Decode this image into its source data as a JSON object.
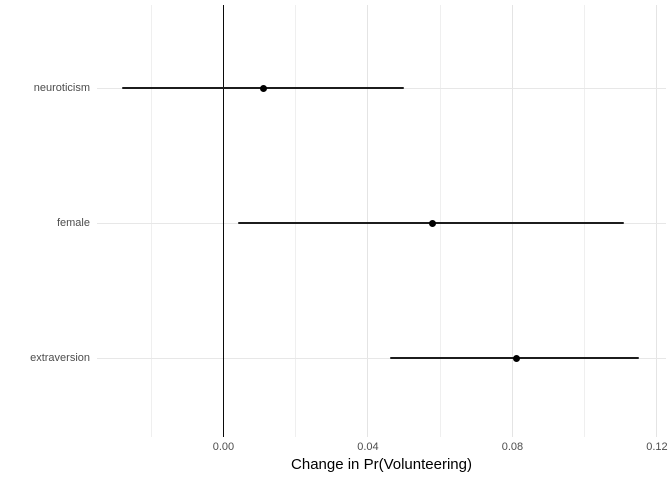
{
  "chart_data": {
    "type": "scatter",
    "subtype": "coefficient-dot-whisker-plot",
    "title": "",
    "xlabel": "Change in Pr(Volunteering)",
    "ylabel": "",
    "categories": [
      "neuroticism",
      "female",
      "extraversion"
    ],
    "series": [
      {
        "name": "estimate-with-95ci",
        "points": [
          {
            "category": "neuroticism",
            "estimate": 0.011,
            "ci_low": -0.028,
            "ci_high": 0.05
          },
          {
            "category": "female",
            "estimate": 0.058,
            "ci_low": 0.004,
            "ci_high": 0.111
          },
          {
            "category": "extraversion",
            "estimate": 0.081,
            "ci_low": 0.046,
            "ci_high": 0.115
          }
        ]
      }
    ],
    "xlim": [
      -0.035,
      0.1225
    ],
    "x_major_ticks": [
      0.0,
      0.04,
      0.08,
      0.12
    ],
    "x_major_tick_labels": [
      "0.00",
      "0.04",
      "0.08",
      "0.12"
    ],
    "x_minor_ticks": [
      -0.02,
      0.02,
      0.06,
      0.1
    ],
    "zero_line_x": 0,
    "grid": true,
    "legend": false,
    "colors": {
      "point": "#000000",
      "ci_line": "#1c1c1c",
      "zero_line": "#0a0a0a",
      "major_gridline": "#e4e4e4",
      "minor_gridline": "#efefef",
      "axis_text": "#4d4d4d",
      "axis_title": "#000000",
      "background": "#ffffff"
    }
  }
}
